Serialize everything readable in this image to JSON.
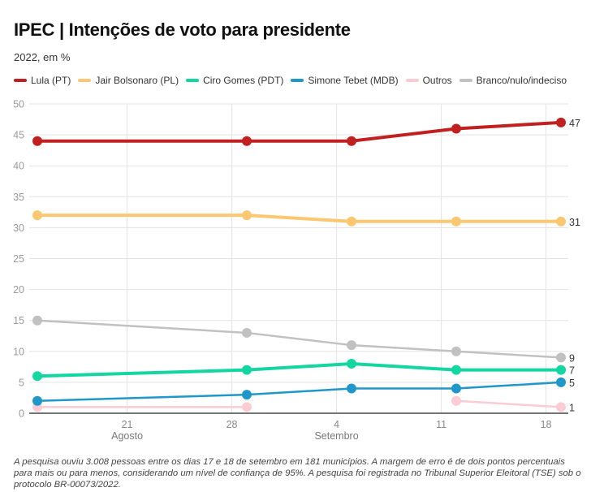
{
  "header": {
    "title": "IPEC | Intenções de voto para presidente",
    "subtitle": "2022, em %"
  },
  "legend": [
    {
      "name": "Lula (PT)",
      "color": "#c0201f"
    },
    {
      "name": "Jair Bolsonaro (PL)",
      "color": "#fbc871"
    },
    {
      "name": "Ciro Gomes (PDT)",
      "color": "#13d6a0"
    },
    {
      "name": "Simone Tebet (MDB)",
      "color": "#1f98c9"
    },
    {
      "name": "Outros",
      "color": "#fcccd4"
    },
    {
      "name": "Branco/nulo/indeciso",
      "color": "#c1c1c1"
    }
  ],
  "footnote": "A pesquisa ouviu 3.008 pessoas entre os dias 17 e 18 de setembro em 181 municípios. A margem de erro é de dois pontos percentuais para mais ou para menos, considerando um nível de confiança de 95%. A pesquisa foi registrada no Tribunal Superior Eleitoral (TSE) sob o protocolo BR-00073/2022.",
  "chart_data": {
    "type": "line",
    "title": "IPEC | Intenções de voto para presidente",
    "subtitle": "2022, em %",
    "xlabel": "",
    "ylabel": "",
    "x": [
      "2022-08-15",
      "2022-08-29",
      "2022-09-05",
      "2022-09-12",
      "2022-09-19"
    ],
    "x_ticks": [
      {
        "date": "2022-08-21",
        "label": "21",
        "sublabel": "Agosto"
      },
      {
        "date": "2022-08-28",
        "label": "28",
        "sublabel": ""
      },
      {
        "date": "2022-09-04",
        "label": "4",
        "sublabel": "Setembro"
      },
      {
        "date": "2022-09-11",
        "label": "11",
        "sublabel": ""
      },
      {
        "date": "2022-09-18",
        "label": "18",
        "sublabel": ""
      }
    ],
    "x_range": [
      "2022-08-14",
      "2022-09-20"
    ],
    "ylim": [
      0,
      50
    ],
    "y_ticks": [
      0,
      5,
      10,
      15,
      20,
      25,
      30,
      35,
      40,
      45,
      50
    ],
    "grid": true,
    "legend_position": "top",
    "series": [
      {
        "name": "Lula (PT)",
        "color": "#c0201f",
        "values": [
          44,
          44,
          44,
          46,
          47
        ],
        "end_label": "47"
      },
      {
        "name": "Jair Bolsonaro (PL)",
        "color": "#fbc871",
        "values": [
          32,
          32,
          31,
          31,
          31
        ],
        "end_label": "31"
      },
      {
        "name": "Ciro Gomes (PDT)",
        "color": "#13d6a0",
        "values": [
          6,
          7,
          8,
          7,
          7
        ],
        "end_label": "7"
      },
      {
        "name": "Simone Tebet (MDB)",
        "color": "#1f98c9",
        "values": [
          2,
          3,
          4,
          4,
          5
        ],
        "end_label": "5"
      },
      {
        "name": "Outros",
        "color": "#fcccd4",
        "values": [
          1,
          1,
          null,
          2,
          1
        ],
        "end_label": "1"
      },
      {
        "name": "Branco/nulo/indeciso",
        "color": "#c1c1c1",
        "values": [
          15,
          13,
          11,
          10,
          9
        ],
        "end_label": "9"
      }
    ]
  }
}
